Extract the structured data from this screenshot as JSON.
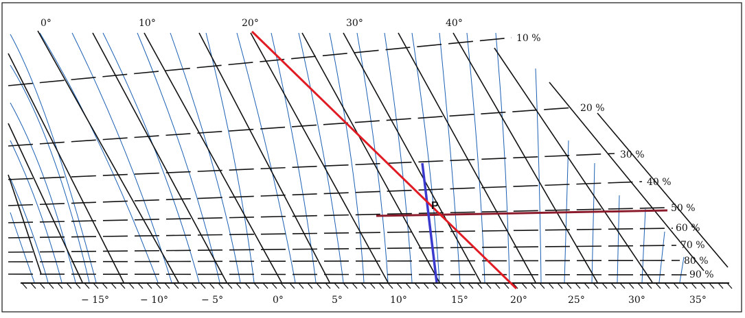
{
  "top_labels": [
    "0°",
    "10°",
    "20°",
    "30°",
    "40°"
  ],
  "bottom_labels": [
    "− 15°",
    "− 10°",
    "− 5°",
    "0°",
    "5°",
    "10°",
    "15°",
    "20°",
    "25°",
    "30°",
    "35°"
  ],
  "humidity_labels": [
    "10 %",
    "20 %",
    "30 %",
    "40 %",
    "50 %",
    "60 %",
    "70 %",
    "80 %",
    "90 %"
  ],
  "point_label": "P",
  "colors": {
    "black": "#111111",
    "blue": "#1a5fb4",
    "red": "#e01b24",
    "marker_blue": "#3a3acf",
    "horizontal_red": "#8b1a2b"
  }
}
